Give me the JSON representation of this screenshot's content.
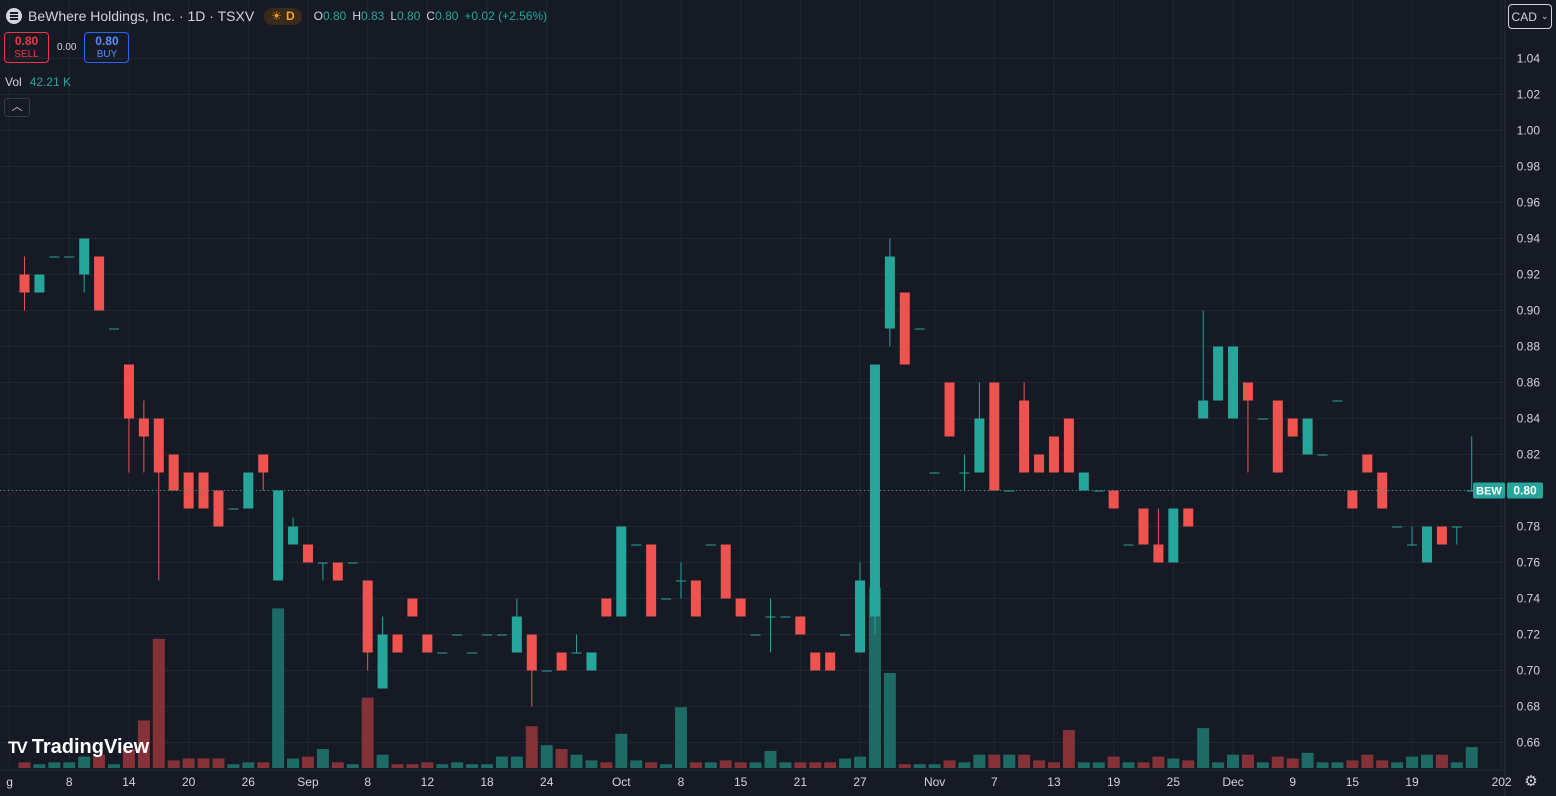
{
  "header": {
    "title": "BeWhere Holdings, Inc. · 1D · TSXV",
    "session_badge": "D",
    "ohlc": [
      {
        "label": "O",
        "value": "0.80"
      },
      {
        "label": "H",
        "value": "0.83"
      },
      {
        "label": "L",
        "value": "0.80"
      },
      {
        "label": "C",
        "value": "0.80"
      },
      {
        "label": "",
        "value": "+0.02 (+2.56%)"
      }
    ]
  },
  "trade": {
    "sell_price": "0.80",
    "sell_label": "SELL",
    "spread": "0.00",
    "buy_price": "0.80",
    "buy_label": "BUY"
  },
  "volume_legend": {
    "label": "Vol",
    "value": "42.21 K"
  },
  "currency": "CAD",
  "branding": "TradingView",
  "colors": {
    "up": "#26a69a",
    "down": "#ef5350",
    "background": "#161a25",
    "grid": "#222631",
    "text": "#d1d4dc"
  },
  "chart_data": {
    "type": "candlestick",
    "symbol": "BEW",
    "last_price": 0.8,
    "price_range": [
      0.645,
      1.05
    ],
    "y_ticks": [
      "1.04",
      "1.02",
      "1.00",
      "0.98",
      "0.96",
      "0.94",
      "0.92",
      "0.90",
      "0.88",
      "0.86",
      "0.84",
      "0.82",
      "0.80",
      "0.78",
      "0.76",
      "0.74",
      "0.72",
      "0.70",
      "0.68",
      "0.66"
    ],
    "x_labels": [
      {
        "i": -1,
        "text": "g"
      },
      {
        "i": 3,
        "text": "8"
      },
      {
        "i": 7,
        "text": "14"
      },
      {
        "i": 11,
        "text": "20"
      },
      {
        "i": 15,
        "text": "26"
      },
      {
        "i": 19,
        "text": "Sep"
      },
      {
        "i": 23,
        "text": "8"
      },
      {
        "i": 27,
        "text": "12"
      },
      {
        "i": 31,
        "text": "18"
      },
      {
        "i": 35,
        "text": "24"
      },
      {
        "i": 40,
        "text": "Oct"
      },
      {
        "i": 44,
        "text": "8"
      },
      {
        "i": 48,
        "text": "15"
      },
      {
        "i": 52,
        "text": "21"
      },
      {
        "i": 56,
        "text": "27"
      },
      {
        "i": 61,
        "text": "Nov"
      },
      {
        "i": 65,
        "text": "7"
      },
      {
        "i": 69,
        "text": "13"
      },
      {
        "i": 73,
        "text": "19"
      },
      {
        "i": 77,
        "text": "25"
      },
      {
        "i": 81,
        "text": "Dec"
      },
      {
        "i": 85,
        "text": "9"
      },
      {
        "i": 89,
        "text": "15"
      },
      {
        "i": 93,
        "text": "19"
      },
      {
        "i": 99,
        "text": "202"
      }
    ],
    "candles": [
      {
        "o": 0.92,
        "h": 0.93,
        "l": 0.9,
        "c": 0.91,
        "v": 3
      },
      {
        "o": 0.91,
        "h": 0.92,
        "l": 0.91,
        "c": 0.92,
        "v": 2
      },
      {
        "o": 0.93,
        "h": 0.93,
        "l": 0.93,
        "c": 0.93,
        "v": 3
      },
      {
        "o": 0.93,
        "h": 0.93,
        "l": 0.93,
        "c": 0.93,
        "v": 3
      },
      {
        "o": 0.92,
        "h": 0.94,
        "l": 0.91,
        "c": 0.94,
        "v": 6
      },
      {
        "o": 0.93,
        "h": 0.93,
        "l": 0.9,
        "c": 0.9,
        "v": 7
      },
      {
        "o": 0.89,
        "h": 0.89,
        "l": 0.89,
        "c": 0.89,
        "v": 2
      },
      {
        "o": 0.87,
        "h": 0.87,
        "l": 0.81,
        "c": 0.84,
        "v": 10
      },
      {
        "o": 0.84,
        "h": 0.85,
        "l": 0.81,
        "c": 0.83,
        "v": 25
      },
      {
        "o": 0.84,
        "h": 0.84,
        "l": 0.75,
        "c": 0.81,
        "v": 68
      },
      {
        "o": 0.82,
        "h": 0.82,
        "l": 0.8,
        "c": 0.8,
        "v": 4
      },
      {
        "o": 0.81,
        "h": 0.81,
        "l": 0.79,
        "c": 0.79,
        "v": 5
      },
      {
        "o": 0.81,
        "h": 0.81,
        "l": 0.79,
        "c": 0.79,
        "v": 5
      },
      {
        "o": 0.8,
        "h": 0.8,
        "l": 0.78,
        "c": 0.78,
        "v": 5
      },
      {
        "o": 0.79,
        "h": 0.79,
        "l": 0.79,
        "c": 0.79,
        "v": 2
      },
      {
        "o": 0.79,
        "h": 0.81,
        "l": 0.79,
        "c": 0.81,
        "v": 3
      },
      {
        "o": 0.82,
        "h": 0.82,
        "l": 0.8,
        "c": 0.81,
        "v": 3
      },
      {
        "o": 0.75,
        "h": 0.8,
        "l": 0.75,
        "c": 0.8,
        "v": 84
      },
      {
        "o": 0.77,
        "h": 0.785,
        "l": 0.77,
        "c": 0.78,
        "v": 5
      },
      {
        "o": 0.77,
        "h": 0.77,
        "l": 0.76,
        "c": 0.76,
        "v": 6
      },
      {
        "o": 0.76,
        "h": 0.76,
        "l": 0.75,
        "c": 0.76,
        "v": 10
      },
      {
        "o": 0.76,
        "h": 0.76,
        "l": 0.75,
        "c": 0.75,
        "v": 3
      },
      {
        "o": 0.76,
        "h": 0.76,
        "l": 0.76,
        "c": 0.76,
        "v": 2
      },
      {
        "o": 0.75,
        "h": 0.75,
        "l": 0.7,
        "c": 0.71,
        "v": 37
      },
      {
        "o": 0.69,
        "h": 0.73,
        "l": 0.69,
        "c": 0.72,
        "v": 7
      },
      {
        "o": 0.72,
        "h": 0.72,
        "l": 0.71,
        "c": 0.71,
        "v": 2
      },
      {
        "o": 0.74,
        "h": 0.74,
        "l": 0.73,
        "c": 0.73,
        "v": 2
      },
      {
        "o": 0.72,
        "h": 0.72,
        "l": 0.71,
        "c": 0.71,
        "v": 3
      },
      {
        "o": 0.71,
        "h": 0.71,
        "l": 0.71,
        "c": 0.71,
        "v": 2
      },
      {
        "o": 0.72,
        "h": 0.72,
        "l": 0.72,
        "c": 0.72,
        "v": 3
      },
      {
        "o": 0.71,
        "h": 0.71,
        "l": 0.71,
        "c": 0.71,
        "v": 2
      },
      {
        "o": 0.72,
        "h": 0.72,
        "l": 0.72,
        "c": 0.72,
        "v": 2
      },
      {
        "o": 0.72,
        "h": 0.72,
        "l": 0.72,
        "c": 0.72,
        "v": 6
      },
      {
        "o": 0.71,
        "h": 0.74,
        "l": 0.71,
        "c": 0.73,
        "v": 6
      },
      {
        "o": 0.72,
        "h": 0.72,
        "l": 0.68,
        "c": 0.7,
        "v": 22
      },
      {
        "o": 0.7,
        "h": 0.7,
        "l": 0.7,
        "c": 0.7,
        "v": 12
      },
      {
        "o": 0.71,
        "h": 0.71,
        "l": 0.7,
        "c": 0.7,
        "v": 10
      },
      {
        "o": 0.71,
        "h": 0.72,
        "l": 0.71,
        "c": 0.71,
        "v": 7
      },
      {
        "o": 0.7,
        "h": 0.71,
        "l": 0.7,
        "c": 0.71,
        "v": 4
      },
      {
        "o": 0.74,
        "h": 0.74,
        "l": 0.73,
        "c": 0.73,
        "v": 3
      },
      {
        "o": 0.73,
        "h": 0.78,
        "l": 0.73,
        "c": 0.78,
        "v": 18
      },
      {
        "o": 0.77,
        "h": 0.77,
        "l": 0.77,
        "c": 0.77,
        "v": 4
      },
      {
        "o": 0.77,
        "h": 0.77,
        "l": 0.73,
        "c": 0.73,
        "v": 3
      },
      {
        "o": 0.74,
        "h": 0.74,
        "l": 0.74,
        "c": 0.74,
        "v": 2
      },
      {
        "o": 0.75,
        "h": 0.76,
        "l": 0.74,
        "c": 0.75,
        "v": 32
      },
      {
        "o": 0.75,
        "h": 0.75,
        "l": 0.73,
        "c": 0.73,
        "v": 3
      },
      {
        "o": 0.77,
        "h": 0.77,
        "l": 0.77,
        "c": 0.77,
        "v": 3
      },
      {
        "o": 0.77,
        "h": 0.77,
        "l": 0.74,
        "c": 0.74,
        "v": 4
      },
      {
        "o": 0.74,
        "h": 0.74,
        "l": 0.73,
        "c": 0.73,
        "v": 3
      },
      {
        "o": 0.72,
        "h": 0.72,
        "l": 0.72,
        "c": 0.72,
        "v": 3
      },
      {
        "o": 0.73,
        "h": 0.74,
        "l": 0.71,
        "c": 0.73,
        "v": 9
      },
      {
        "o": 0.73,
        "h": 0.73,
        "l": 0.73,
        "c": 0.73,
        "v": 3
      },
      {
        "o": 0.73,
        "h": 0.73,
        "l": 0.72,
        "c": 0.72,
        "v": 3
      },
      {
        "o": 0.71,
        "h": 0.71,
        "l": 0.7,
        "c": 0.7,
        "v": 3
      },
      {
        "o": 0.71,
        "h": 0.71,
        "l": 0.7,
        "c": 0.7,
        "v": 3
      },
      {
        "o": 0.72,
        "h": 0.72,
        "l": 0.72,
        "c": 0.72,
        "v": 5
      },
      {
        "o": 0.71,
        "h": 0.76,
        "l": 0.71,
        "c": 0.75,
        "v": 6
      },
      {
        "o": 0.73,
        "h": 0.87,
        "l": 0.72,
        "c": 0.87,
        "v": 95
      },
      {
        "o": 0.89,
        "h": 0.94,
        "l": 0.88,
        "c": 0.93,
        "v": 50
      },
      {
        "o": 0.91,
        "h": 0.91,
        "l": 0.87,
        "c": 0.87,
        "v": 2
      },
      {
        "o": 0.89,
        "h": 0.89,
        "l": 0.89,
        "c": 0.89,
        "v": 2
      },
      {
        "o": 0.81,
        "h": 0.81,
        "l": 0.81,
        "c": 0.81,
        "v": 2
      },
      {
        "o": 0.86,
        "h": 0.86,
        "l": 0.83,
        "c": 0.83,
        "v": 4
      },
      {
        "o": 0.81,
        "h": 0.82,
        "l": 0.8,
        "c": 0.81,
        "v": 3
      },
      {
        "o": 0.81,
        "h": 0.86,
        "l": 0.81,
        "c": 0.84,
        "v": 7
      },
      {
        "o": 0.86,
        "h": 0.86,
        "l": 0.8,
        "c": 0.8,
        "v": 7
      },
      {
        "o": 0.8,
        "h": 0.8,
        "l": 0.8,
        "c": 0.8,
        "v": 7
      },
      {
        "o": 0.85,
        "h": 0.86,
        "l": 0.81,
        "c": 0.81,
        "v": 7
      },
      {
        "o": 0.82,
        "h": 0.82,
        "l": 0.81,
        "c": 0.81,
        "v": 4
      },
      {
        "o": 0.83,
        "h": 0.83,
        "l": 0.81,
        "c": 0.81,
        "v": 3
      },
      {
        "o": 0.84,
        "h": 0.84,
        "l": 0.81,
        "c": 0.81,
        "v": 20
      },
      {
        "o": 0.8,
        "h": 0.81,
        "l": 0.8,
        "c": 0.81,
        "v": 3
      },
      {
        "o": 0.8,
        "h": 0.8,
        "l": 0.8,
        "c": 0.8,
        "v": 3
      },
      {
        "o": 0.8,
        "h": 0.8,
        "l": 0.79,
        "c": 0.79,
        "v": 6
      },
      {
        "o": 0.77,
        "h": 0.77,
        "l": 0.77,
        "c": 0.77,
        "v": 3
      },
      {
        "o": 0.79,
        "h": 0.79,
        "l": 0.77,
        "c": 0.77,
        "v": 3
      },
      {
        "o": 0.77,
        "h": 0.79,
        "l": 0.76,
        "c": 0.76,
        "v": 6
      },
      {
        "o": 0.76,
        "h": 0.79,
        "l": 0.76,
        "c": 0.79,
        "v": 5
      },
      {
        "o": 0.79,
        "h": 0.79,
        "l": 0.78,
        "c": 0.78,
        "v": 4
      },
      {
        "o": 0.84,
        "h": 0.9,
        "l": 0.84,
        "c": 0.85,
        "v": 21
      },
      {
        "o": 0.85,
        "h": 0.88,
        "l": 0.85,
        "c": 0.88,
        "v": 3
      },
      {
        "o": 0.84,
        "h": 0.88,
        "l": 0.84,
        "c": 0.88,
        "v": 7
      },
      {
        "o": 0.86,
        "h": 0.86,
        "l": 0.81,
        "c": 0.85,
        "v": 7
      },
      {
        "o": 0.84,
        "h": 0.84,
        "l": 0.84,
        "c": 0.84,
        "v": 3
      },
      {
        "o": 0.85,
        "h": 0.85,
        "l": 0.81,
        "c": 0.81,
        "v": 6
      },
      {
        "o": 0.84,
        "h": 0.84,
        "l": 0.83,
        "c": 0.83,
        "v": 5
      },
      {
        "o": 0.82,
        "h": 0.84,
        "l": 0.82,
        "c": 0.84,
        "v": 8
      },
      {
        "o": 0.82,
        "h": 0.82,
        "l": 0.82,
        "c": 0.82,
        "v": 3
      },
      {
        "o": 0.85,
        "h": 0.85,
        "l": 0.85,
        "c": 0.85,
        "v": 3
      },
      {
        "o": 0.8,
        "h": 0.8,
        "l": 0.79,
        "c": 0.79,
        "v": 4
      },
      {
        "o": 0.82,
        "h": 0.82,
        "l": 0.81,
        "c": 0.81,
        "v": 7
      },
      {
        "o": 0.81,
        "h": 0.81,
        "l": 0.79,
        "c": 0.79,
        "v": 4
      },
      {
        "o": 0.78,
        "h": 0.78,
        "l": 0.78,
        "c": 0.78,
        "v": 3
      },
      {
        "o": 0.77,
        "h": 0.78,
        "l": 0.77,
        "c": 0.77,
        "v": 6
      },
      {
        "o": 0.76,
        "h": 0.78,
        "l": 0.76,
        "c": 0.78,
        "v": 7
      },
      {
        "o": 0.78,
        "h": 0.78,
        "l": 0.77,
        "c": 0.77,
        "v": 7
      },
      {
        "o": 0.78,
        "h": 0.78,
        "l": 0.77,
        "c": 0.78,
        "v": 3
      },
      {
        "o": 0.8,
        "h": 0.83,
        "l": 0.8,
        "c": 0.8,
        "v": 11
      }
    ]
  }
}
